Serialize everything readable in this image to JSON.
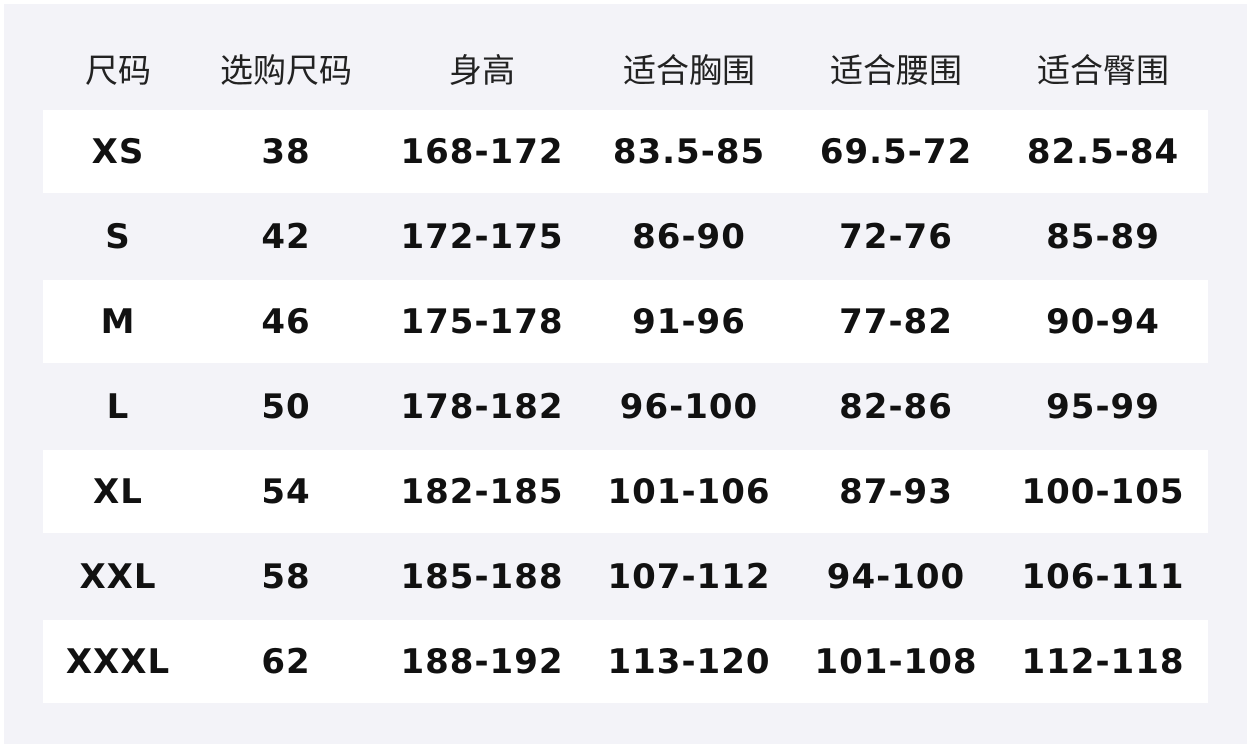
{
  "table": {
    "header": [
      "尺码",
      "选购尺码",
      "身高",
      "适合胸围",
      "适合腰围",
      "适合臀围"
    ],
    "rows": [
      [
        "XS",
        "38",
        "168-172",
        "83.5-85",
        "69.5-72",
        "82.5-84"
      ],
      [
        "S",
        "42",
        "172-175",
        "86-90",
        "72-76",
        "85-89"
      ],
      [
        "M",
        "46",
        "175-178",
        "91-96",
        "77-82",
        "90-94"
      ],
      [
        "L",
        "50",
        "178-182",
        "96-100",
        "82-86",
        "95-99"
      ],
      [
        "XL",
        "54",
        "182-185",
        "101-106",
        "87-93",
        "100-105"
      ],
      [
        "XXL",
        "58",
        "185-188",
        "107-112",
        "94-100",
        "106-111"
      ],
      [
        "XXXL",
        "62",
        "188-192",
        "113-120",
        "101-108",
        "112-118"
      ]
    ]
  }
}
